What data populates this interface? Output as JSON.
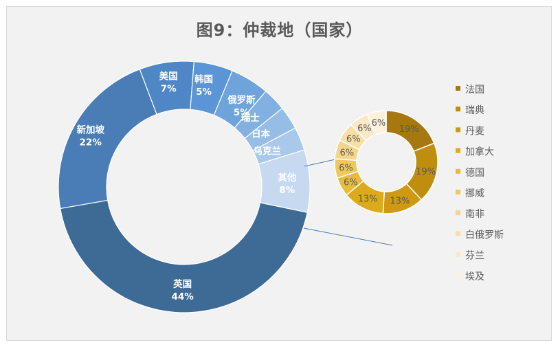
{
  "title": "图9：仲裁地（国家）",
  "chart_data": [
    {
      "type": "pie",
      "hole": "donut",
      "categories": [
        "英国",
        "新加坡",
        "美国",
        "韩国",
        "俄罗斯",
        "瑞士",
        "日本",
        "乌克兰",
        "其他"
      ],
      "values": [
        44,
        22,
        7,
        5,
        5,
        3,
        3,
        3,
        8
      ],
      "labels": [
        "英国\n44%",
        "新加坡\n22%",
        "美国\n7%",
        "韩国\n5%",
        "俄罗斯\n5%",
        "瑞士",
        "日本",
        "乌克兰",
        "其他\n8%"
      ],
      "colors": [
        "#3e6a96",
        "#4a7cb6",
        "#4f86c6",
        "#5b95d6",
        "#6ea3dc",
        "#82b0e0",
        "#95bde6",
        "#a9c9ea",
        "#c6d9f1"
      ]
    },
    {
      "type": "pie",
      "hole": "donut",
      "categories": [
        "法国",
        "瑞典",
        "丹麦",
        "加拿大",
        "德国",
        "挪威",
        "南非",
        "白俄罗斯",
        "芬兰",
        "埃及"
      ],
      "values": [
        19,
        19,
        13,
        13,
        6,
        6,
        6,
        6,
        6,
        6
      ],
      "colors": [
        "#a6780f",
        "#c08e0f",
        "#cf9a10",
        "#dcaa1a",
        "#e7bc3d",
        "#f0c75e",
        "#f5d58b",
        "#f8dfa8",
        "#fbe9c6",
        "#fdf1dc"
      ],
      "legend": "right"
    }
  ]
}
